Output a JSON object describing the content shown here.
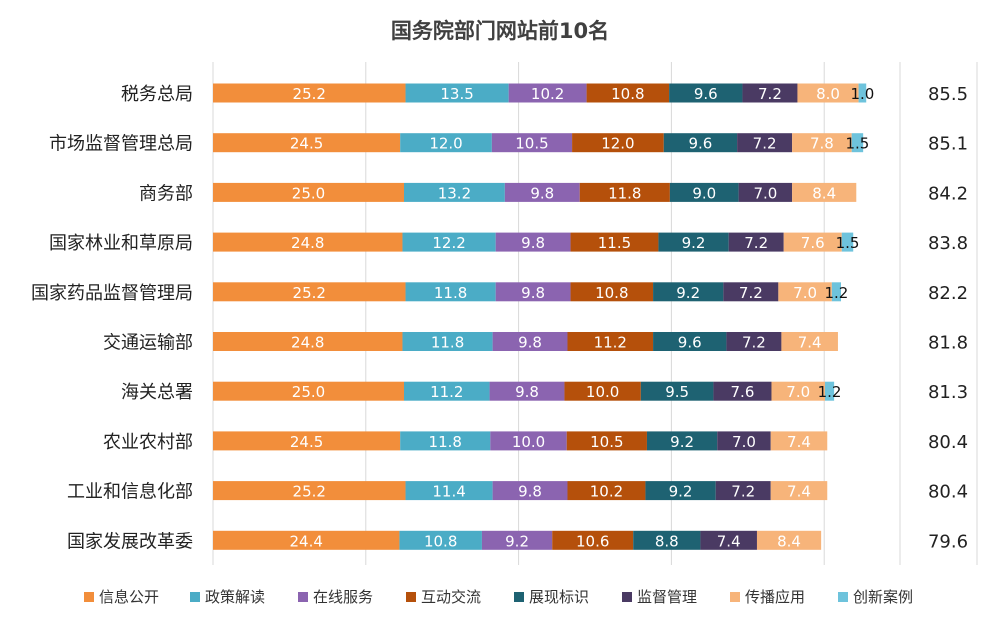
{
  "chart_data": {
    "type": "bar",
    "orientation": "horizontal",
    "stacked": true,
    "title": "国务院部门网站前10名",
    "categories": [
      "税务总局",
      "市场监督管理总局",
      "商务部",
      "国家林业和草原局",
      "国家药品监督管理局",
      "交通运输部",
      "海关总署",
      "农业农村部",
      "工业和信息化部",
      "国家发展改革委"
    ],
    "totals": [
      "85.5",
      "85.1",
      "84.2",
      "83.8",
      "82.2",
      "81.8",
      "81.3",
      "80.4",
      "80.4",
      "79.6"
    ],
    "series": [
      {
        "name": "信息公开",
        "color": "#F28E3B",
        "values": [
          25.2,
          24.5,
          25.0,
          24.8,
          25.2,
          24.8,
          25.0,
          24.5,
          25.2,
          24.4
        ]
      },
      {
        "name": "政策解读",
        "color": "#4BACC6",
        "values": [
          13.5,
          12.0,
          13.2,
          12.2,
          11.8,
          11.8,
          11.2,
          11.8,
          11.4,
          10.8
        ]
      },
      {
        "name": "在线服务",
        "color": "#8B64B0",
        "values": [
          10.2,
          10.5,
          9.8,
          9.8,
          9.8,
          9.8,
          9.8,
          10.0,
          9.8,
          9.2
        ]
      },
      {
        "name": "互动交流",
        "color": "#B5500B",
        "values": [
          10.8,
          12.0,
          11.8,
          11.5,
          10.8,
          11.2,
          10.0,
          10.5,
          10.2,
          10.6
        ]
      },
      {
        "name": "展现标识",
        "color": "#1E6272",
        "values": [
          9.6,
          9.6,
          9.0,
          9.2,
          9.2,
          9.6,
          9.5,
          9.2,
          9.2,
          8.8
        ]
      },
      {
        "name": "监督管理",
        "color": "#4A3A63",
        "values": [
          7.2,
          7.2,
          7.0,
          7.2,
          7.2,
          7.2,
          7.6,
          7.0,
          7.2,
          7.4
        ]
      },
      {
        "name": "传播应用",
        "color": "#F7B47A",
        "values": [
          8.0,
          7.8,
          8.4,
          7.6,
          7.0,
          7.4,
          7.0,
          7.4,
          7.4,
          8.4
        ]
      },
      {
        "name": "创新案例",
        "color": "#6EC3DC",
        "values": [
          1.0,
          1.5,
          null,
          1.5,
          1.2,
          null,
          1.2,
          null,
          null,
          null
        ]
      }
    ],
    "data_labels": [
      [
        "25.2",
        "13.5",
        "10.2",
        "10.8",
        "9.6",
        "7.2",
        "8.0",
        "1.0"
      ],
      [
        "24.5",
        "12.0",
        "10.5",
        "12.0",
        "9.6",
        "7.2",
        "7.8",
        "1.5"
      ],
      [
        "25.0",
        "13.2",
        "9.8",
        "11.8",
        "9.0",
        "7.0",
        "8.4",
        ""
      ],
      [
        "24.8",
        "12.2",
        "9.8",
        "11.5",
        "9.2",
        "7.2",
        "7.6",
        "1.5"
      ],
      [
        "25.2",
        "11.8",
        "9.8",
        "10.8",
        "9.2",
        "7.2",
        "7.0",
        "1.2"
      ],
      [
        "24.8",
        "11.8",
        "9.8",
        "11.2",
        "9.6",
        "7.2",
        "7.4",
        ""
      ],
      [
        "25.0",
        "11.2",
        "9.8",
        "10.0",
        "9.5",
        "7.6",
        "7.0",
        "1.2"
      ],
      [
        "24.5",
        "11.8",
        "10.0",
        "10.5",
        "9.2",
        "7.0",
        "7.4",
        ""
      ],
      [
        "25.2",
        "11.4",
        "9.8",
        "10.2",
        "9.2",
        "7.2",
        "7.4",
        ""
      ],
      [
        "24.4",
        "10.8",
        "9.2",
        "10.6",
        "8.8",
        "7.4",
        "8.4",
        ""
      ]
    ],
    "xlim": [
      0,
      100
    ],
    "grid": true,
    "legend_position": "bottom"
  }
}
